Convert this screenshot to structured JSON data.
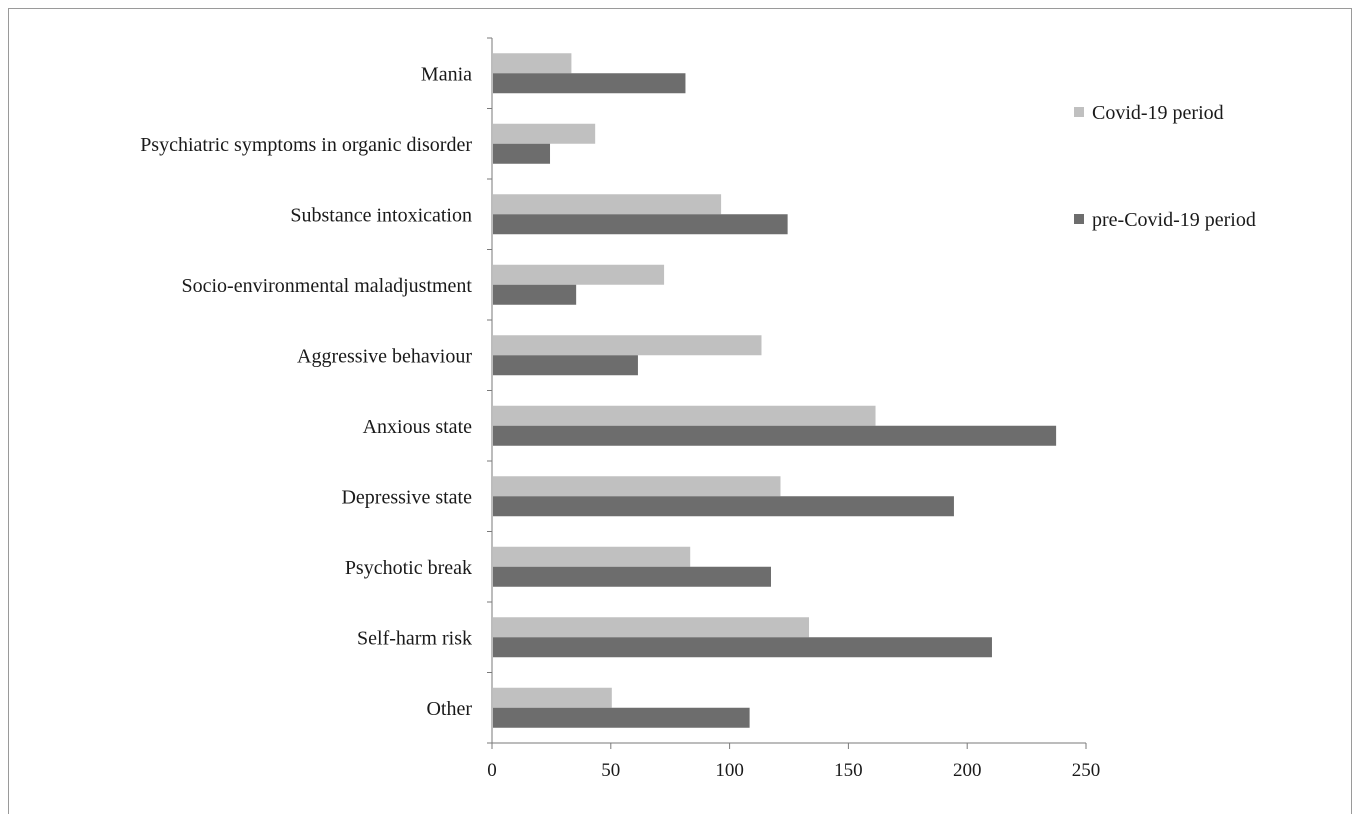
{
  "chart_data": {
    "type": "bar",
    "orientation": "horizontal",
    "categories": [
      "Mania",
      "Psychiatric symptoms in organic disorder",
      "Substance intoxication",
      "Socio-environmental maladjustment",
      "Aggressive behaviour",
      "Anxious state",
      "Depressive state",
      "Psychotic break",
      "Self-harm risk",
      "Other"
    ],
    "series": [
      {
        "name": "Covid-19 period",
        "color": "#c0c0c0",
        "values": [
          33,
          43,
          96,
          72,
          113,
          161,
          121,
          83,
          133,
          50
        ]
      },
      {
        "name": "pre-Covid-19 period",
        "color": "#6d6d6d",
        "values": [
          81,
          24,
          124,
          35,
          61,
          237,
          194,
          117,
          210,
          108
        ]
      }
    ],
    "xlim": [
      0,
      250
    ],
    "xticks": [
      "0",
      "50",
      "100",
      "150",
      "200",
      "250"
    ],
    "grid": false,
    "legend_position": "right"
  }
}
